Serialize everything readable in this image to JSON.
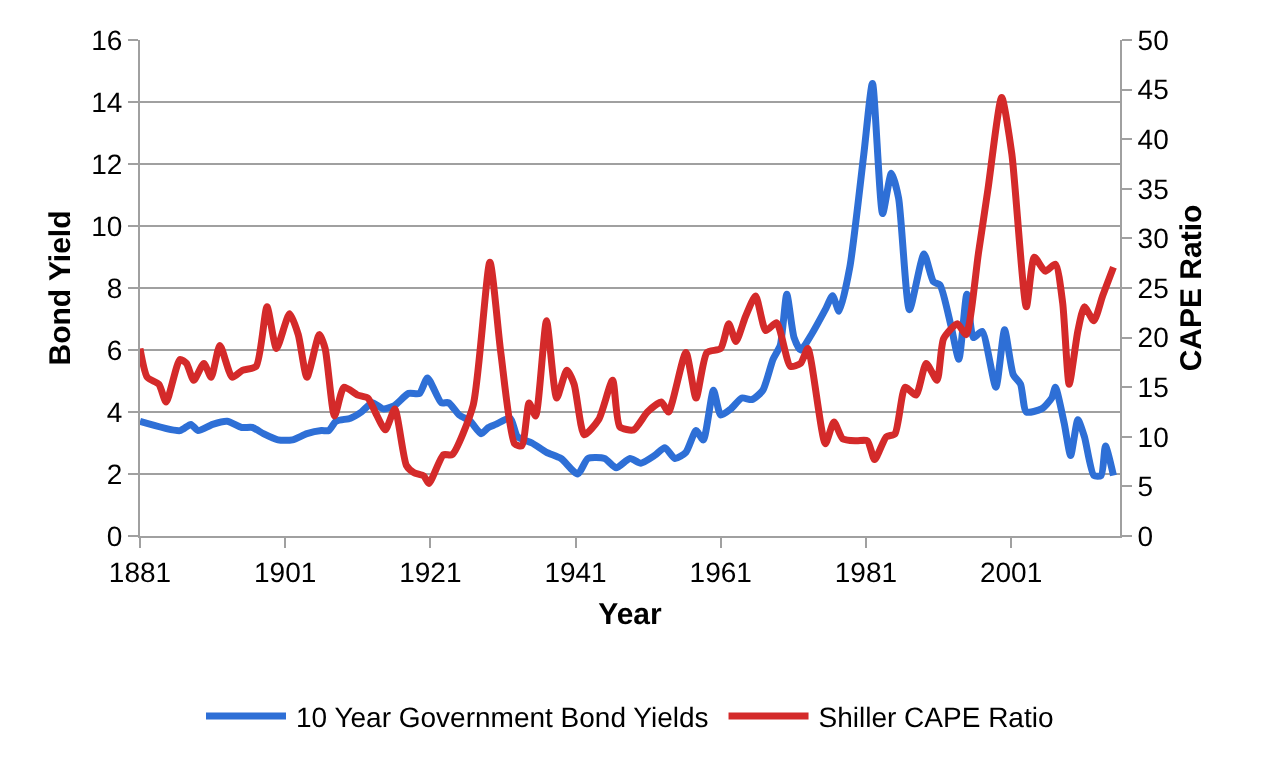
{
  "chart_data": {
    "type": "line",
    "xlabel": "Year",
    "ylabel": "Bond Yield",
    "y2label": "CAPE Ratio",
    "xlim": [
      1881,
      2016
    ],
    "xticks": [
      1881,
      1901,
      1921,
      1941,
      1961,
      1981,
      2001
    ],
    "ylim": [
      0,
      16
    ],
    "yticks": [
      0,
      2,
      4,
      6,
      8,
      10,
      12,
      14,
      16
    ],
    "y2lim": [
      0,
      50
    ],
    "y2ticks": [
      0,
      5,
      10,
      15,
      20,
      25,
      30,
      35,
      40,
      45,
      50
    ],
    "grid": "y",
    "legend": "bottom",
    "marker": "none",
    "line_style": "solid",
    "series": [
      {
        "name": "10 Year Government Bond Yields",
        "color": "#2e6fd6",
        "x": [
          1881,
          1886.5,
          1888,
          1889,
          1891,
          1893,
          1895,
          1896.5,
          1898,
          1900,
          1902,
          1904,
          1906,
          1907,
          1908,
          1910,
          1911.5,
          1913,
          1914.5,
          1916,
          1918,
          1919.5,
          1920.6,
          1922.5,
          1923.5,
          1925,
          1926.5,
          1928,
          1929,
          1930,
          1932,
          1933,
          1935,
          1937,
          1939,
          1941.3,
          1942.7,
          1945,
          1946.6,
          1948.5,
          1950,
          1951.9,
          1953.3,
          1954.7,
          1956.2,
          1957.6,
          1958.6,
          1960,
          1961,
          1962.4,
          1963.9,
          1965.3,
          1966.8,
          1968.2,
          1969.2,
          1970.1,
          1971.1,
          1972,
          1973.5,
          1975.4,
          1976.4,
          1977.3,
          1978.8,
          1980.7,
          1981.9,
          1983.3,
          1984.5,
          1985.5,
          1987,
          1989,
          1990.3,
          1991.2,
          1992.7,
          1993.8,
          1994.9,
          1995.8,
          1997,
          1998.9,
          2000.1,
          2001.3,
          2002.3,
          2003.1,
          2005.2,
          2006.6,
          2007.1,
          2008.3,
          2009.2,
          2010.2,
          2011.1,
          2012.4,
          2013.4,
          2014,
          2015.1
        ],
        "values": [
          3.7,
          3.4,
          3.6,
          3.4,
          3.6,
          3.7,
          3.5,
          3.5,
          3.3,
          3.1,
          3.1,
          3.3,
          3.4,
          3.4,
          3.7,
          3.8,
          4.0,
          4.3,
          4.1,
          4.2,
          4.6,
          4.6,
          5.1,
          4.3,
          4.3,
          3.9,
          3.7,
          3.3,
          3.5,
          3.6,
          3.8,
          3.2,
          3.0,
          2.7,
          2.5,
          2.0,
          2.5,
          2.5,
          2.2,
          2.5,
          2.35,
          2.6,
          2.85,
          2.5,
          2.7,
          3.4,
          3.1,
          4.7,
          3.9,
          4.1,
          4.45,
          4.4,
          4.7,
          5.7,
          6.15,
          7.8,
          6.4,
          6.0,
          6.5,
          7.3,
          7.75,
          7.25,
          8.7,
          12.3,
          14.6,
          10.4,
          11.7,
          10.9,
          7.3,
          9.1,
          8.2,
          8.1,
          6.8,
          5.7,
          7.8,
          6.4,
          6.6,
          4.8,
          6.65,
          5.2,
          4.9,
          4.0,
          4.1,
          4.45,
          4.8,
          3.65,
          2.6,
          3.75,
          3.2,
          1.95,
          1.95,
          2.9,
          1.95
        ]
      },
      {
        "name": "Shiller CAPE Ratio",
        "color": "#d42a2a",
        "axis": "y2",
        "x": [
          1881,
          1882,
          1883.6,
          1884.6,
          1886.5,
          1887.4,
          1888.4,
          1889.8,
          1890.8,
          1892,
          1893.7,
          1895.1,
          1897,
          1898.5,
          1899.8,
          1901.6,
          1902.8,
          1904,
          1905.7,
          1906.5,
          1907.8,
          1909.1,
          1911,
          1912.4,
          1913.4,
          1914.8,
          1916.1,
          1917.7,
          1918.7,
          1920.1,
          1920.8,
          1922.8,
          1924,
          1926.9,
          1929.2,
          1930.7,
          1932.6,
          1933.6,
          1934.6,
          1935.5,
          1937,
          1938.4,
          1939.8,
          1940.8,
          1942.2,
          1944.2,
          1946.1,
          1947.1,
          1949,
          1950.9,
          1952.8,
          1953.8,
          1956.2,
          1957.6,
          1959.1,
          1961,
          1962.1,
          1963.1,
          1964.4,
          1965.8,
          1967.2,
          1968.7,
          1970.6,
          1972,
          1973,
          1975.4,
          1976.6,
          1977.8,
          1979.7,
          1981.2,
          1982.2,
          1983.8,
          1985,
          1986.4,
          1987.9,
          1989.3,
          1990.8,
          1991.7,
          1993.6,
          1994.8,
          1996.5,
          1997.8,
          1999.7,
          2001.1,
          2003.1,
          2004.2,
          2005.7,
          2007.1,
          2008.1,
          2009,
          2010.2,
          2011.1,
          2012.4,
          2013.6,
          2015.1
        ],
        "values": [
          18.9,
          16.0,
          15.3,
          13.5,
          17.8,
          17.4,
          15.7,
          17.4,
          16.0,
          19.2,
          16.0,
          16.7,
          17.1,
          23.1,
          18.9,
          22.4,
          20.3,
          16.0,
          20.3,
          18.9,
          12.1,
          15.0,
          14.2,
          13.9,
          12.5,
          10.7,
          12.8,
          7.1,
          6.4,
          6.05,
          5.3,
          8.2,
          8.2,
          13.2,
          27.6,
          18.5,
          9.3,
          9.1,
          13.4,
          12.1,
          21.7,
          13.9,
          16.7,
          15.3,
          10.2,
          11.75,
          15.7,
          11.0,
          10.7,
          12.5,
          13.5,
          12.5,
          18.5,
          13.9,
          18.5,
          18.9,
          21.4,
          19.6,
          22.1,
          24.2,
          20.7,
          21.5,
          17.1,
          17.4,
          18.9,
          9.3,
          11.5,
          9.8,
          9.6,
          9.6,
          7.7,
          10.0,
          10.3,
          15.0,
          14.2,
          17.4,
          15.7,
          19.9,
          21.4,
          20.3,
          28.5,
          34.9,
          44.2,
          38.5,
          23.1,
          28.1,
          26.7,
          27.4,
          23.5,
          15.3,
          20.7,
          23.1,
          21.7,
          24.2,
          27.1
        ]
      }
    ]
  }
}
